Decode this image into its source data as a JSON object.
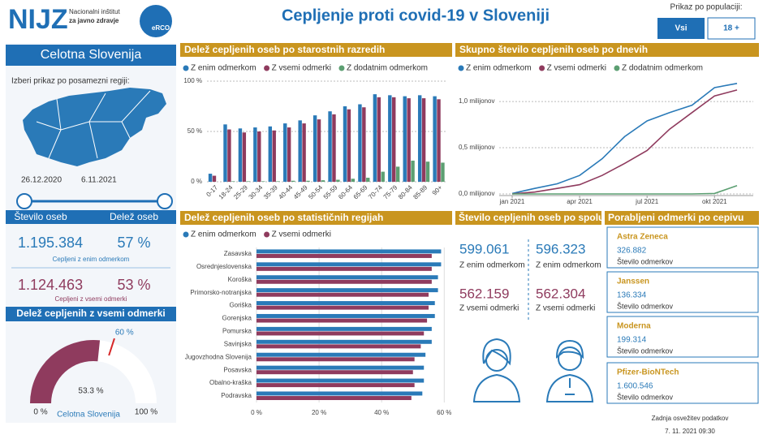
{
  "header": {
    "logo": "NIJZ",
    "institute": [
      "Nacionalni inštitut",
      "za javno zdravje"
    ],
    "badge": "eRCO",
    "title": "Cepljenje proti covid-19 v Sloveniji",
    "population": {
      "label": "Prikaz po populaciji:",
      "options": [
        "Vsi",
        "18 +"
      ]
    }
  },
  "region_panel": {
    "title": "Celotna Slovenija",
    "prompt": "Izberi prikaz po posamezni regiji:",
    "date_range": [
      "26.12.2020",
      "6.11.2021"
    ]
  },
  "summary": {
    "headers": [
      "Število oseb",
      "Delež oseb"
    ],
    "rows": [
      {
        "count": "1.195.384",
        "share": "57 %",
        "caption": "Cepljeni z enim odmerkom"
      },
      {
        "count": "1.124.463",
        "share": "53 %",
        "caption": "Cepljeni z vsemi odmerki"
      }
    ]
  },
  "by_sex": {
    "title": "Število cepljenih oseb po spolu",
    "groups": [
      {
        "first": "599.061",
        "first_label": "Z enim odmerkom",
        "all": "562.159",
        "all_label": "Z vsemi odmerki"
      },
      {
        "first": "596.323",
        "first_label": "Z enim odmerkom",
        "all": "562.304",
        "all_label": "Z vsemi odmerki"
      }
    ]
  },
  "vaccines": {
    "title": "Porabljeni odmerki po cepivu",
    "items": [
      {
        "name": "Astra Zeneca",
        "doses": "326.882",
        "caption": "Število odmerkov"
      },
      {
        "name": "Janssen",
        "doses": "136.334",
        "caption": "Število odmerkov"
      },
      {
        "name": "Moderna",
        "doses": "199.314",
        "caption": "Število odmerkov"
      },
      {
        "name": "Pfizer-BioNTech",
        "doses": "1.600.546",
        "caption": "Število odmerkov"
      }
    ]
  },
  "updated": {
    "label": "Zadnja osvežitev podatkov",
    "time": "7. 11. 2021 09:30"
  },
  "chart_data": [
    {
      "type": "bar",
      "orientation": "vertical",
      "title": "Delež cepljenih oseb po starostnih razredih",
      "categories": [
        "0-17",
        "18-24",
        "25-29",
        "30-34",
        "35-39",
        "40-44",
        "45-49",
        "50-54",
        "55-59",
        "60-64",
        "65-69",
        "70-74",
        "75-79",
        "80-84",
        "85-89",
        "90+"
      ],
      "series": [
        {
          "name": "Z enim odmerkom",
          "color": "#2a7ab8",
          "values": [
            8,
            57,
            53,
            54,
            55,
            58,
            61,
            66,
            70,
            75,
            77,
            87,
            86,
            85,
            86,
            85
          ]
        },
        {
          "name": "Z vsemi odmerki",
          "color": "#8f3b5e",
          "values": [
            6,
            52,
            49,
            50,
            51,
            54,
            58,
            62,
            67,
            72,
            74,
            84,
            84,
            83,
            83,
            82
          ]
        },
        {
          "name": "Z dodatnim odmerkom",
          "color": "#5c9f72",
          "values": [
            0,
            0.5,
            0.5,
            0.5,
            0.5,
            1,
            1,
            1.5,
            2,
            3,
            4,
            10,
            15,
            21,
            20,
            19
          ]
        }
      ],
      "ylim": [
        0,
        100
      ],
      "yticks": [
        {
          "value": 0,
          "label": "0 %"
        },
        {
          "value": 50,
          "label": "50 %"
        },
        {
          "value": 100,
          "label": "100 %"
        }
      ],
      "grid": true
    },
    {
      "type": "line",
      "title": "Skupno število cepljenih oseb po dnevih",
      "x": [
        "2021-01",
        "2021-02",
        "2021-03",
        "2021-04",
        "2021-05",
        "2021-06",
        "2021-07",
        "2021-08",
        "2021-09",
        "2021-10",
        "2021-11"
      ],
      "series": [
        {
          "name": "Z enim odmerkom",
          "color": "#2a7ab8",
          "values": [
            5000,
            60000,
            110000,
            200000,
            380000,
            620000,
            790000,
            880000,
            960000,
            1150000,
            1195384
          ]
        },
        {
          "name": "Z vsemi odmerki",
          "color": "#8f3b5e",
          "values": [
            0,
            20000,
            60000,
            100000,
            200000,
            330000,
            470000,
            700000,
            880000,
            1060000,
            1124463
          ]
        },
        {
          "name": "Z dodatnim odmerkom",
          "color": "#5c9f72",
          "values": [
            0,
            0,
            0,
            0,
            0,
            0,
            0,
            0,
            0,
            5000,
            90000
          ]
        }
      ],
      "xlim": [
        "2021-01",
        "2021-11"
      ],
      "xticks": [
        {
          "value": "2021-01",
          "label": "jan 2021"
        },
        {
          "value": "2021-04",
          "label": "apr 2021"
        },
        {
          "value": "2021-07",
          "label": "jul 2021"
        },
        {
          "value": "2021-10",
          "label": "okt 2021"
        }
      ],
      "ylim": [
        0,
        1220000
      ],
      "yticks": [
        {
          "value": 0,
          "label": "0,0 milijonov"
        },
        {
          "value": 500000,
          "label": "0,5 milijonov"
        },
        {
          "value": 1000000,
          "label": "1,0 milijonov"
        }
      ],
      "grid": true
    },
    {
      "type": "bar",
      "orientation": "horizontal",
      "title": "Delež cepljenih oseb po statističnih regijah",
      "categories": [
        "Zasavska",
        "Osrednjeslovenska",
        "Koroška",
        "Primorsko-notranjska",
        "Goriška",
        "Gorenjska",
        "Pomurska",
        "Savinjska",
        "Jugovzhodna Slovenija",
        "Posavska",
        "Obalno-kraška",
        "Podravska"
      ],
      "series": [
        {
          "name": "Z enim odmerkom",
          "color": "#2a7ab8",
          "values": [
            59,
            59,
            58,
            58,
            57,
            57,
            56,
            56,
            54,
            53.5,
            53.5,
            53
          ]
        },
        {
          "name": "Z vsemi odmerki",
          "color": "#8f3b5e",
          "values": [
            56,
            56,
            56,
            55,
            55,
            54.5,
            53.5,
            52.5,
            50.5,
            50,
            50.5,
            49.5
          ]
        }
      ],
      "xlim": [
        0,
        62
      ],
      "xticks": [
        {
          "value": 0,
          "label": "0 %"
        },
        {
          "value": 20,
          "label": "20 %"
        },
        {
          "value": 40,
          "label": "40 %"
        },
        {
          "value": 60,
          "label": "60 %"
        }
      ],
      "grid": true
    },
    {
      "type": "gauge",
      "title": "Delež cepljenih z vsemi odmerki",
      "values": [
        53.3
      ],
      "value_labels": [
        "53.3 %"
      ],
      "color": "#8f3b5e",
      "target": {
        "value": 60,
        "label": "60 %"
      },
      "xlim": [
        0,
        100
      ],
      "xticks": [
        {
          "value": 0,
          "label": "0 %"
        },
        {
          "value": 100,
          "label": "100 %"
        }
      ],
      "caption": "Celotna Slovenija"
    }
  ]
}
